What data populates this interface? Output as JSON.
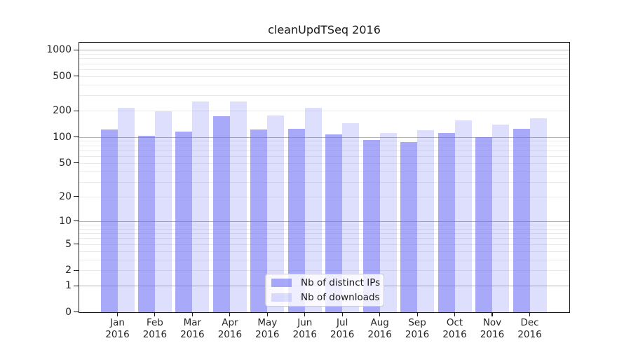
{
  "title": "cleanUpdTSeq 2016",
  "chart_data": {
    "type": "bar",
    "title": "cleanUpdTSeq 2016",
    "categories": [
      "Jan",
      "Feb",
      "Mar",
      "Apr",
      "May",
      "Jun",
      "Jul",
      "Aug",
      "Sep",
      "Oct",
      "Nov",
      "Dec"
    ],
    "category_year": "2016",
    "series": [
      {
        "name": "Nb of distinct IPs",
        "values": [
          122,
          104,
          115,
          173,
          121,
          123,
          106,
          93,
          87,
          112,
          100,
          123
        ],
        "color": "#6a6af6",
        "opacity": 0.58
      },
      {
        "name": "Nb of downloads",
        "values": [
          218,
          198,
          255,
          258,
          178,
          218,
          144,
          111,
          120,
          155,
          140,
          164
        ],
        "color": "#6a6af6",
        "opacity": 0.22
      }
    ],
    "xlabel": "",
    "ylabel": "",
    "y_ticks": [
      0,
      1,
      2,
      5,
      10,
      20,
      50,
      100,
      200,
      500,
      1000
    ],
    "y_major_gridlines": [
      1,
      10,
      100,
      1000
    ],
    "y_scale": "symlog ln(1+x)",
    "ylim": [
      0,
      1200
    ],
    "grid": "horizontal major + log minor",
    "legend_position": "inside-bottom-center"
  },
  "colors": {
    "bar_base": "#6a6af6",
    "grid_major": "#b0b0b0",
    "grid_minor": "#eaeaea",
    "axis": "#1a1a1a",
    "text": "#262626",
    "legend_border": "#cccccc"
  }
}
